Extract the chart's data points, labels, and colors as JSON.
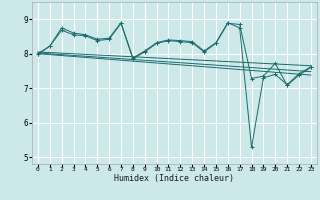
{
  "xlabel": "Humidex (Indice chaleur)",
  "bg_color": "#cce8e8",
  "grid_color": "#ffffff",
  "line_color": "#1a6b6b",
  "xlim": [
    -0.5,
    23.5
  ],
  "ylim": [
    4.8,
    9.5
  ],
  "yticks": [
    5,
    6,
    7,
    8,
    9
  ],
  "xticks": [
    0,
    1,
    2,
    3,
    4,
    5,
    6,
    7,
    8,
    9,
    10,
    11,
    12,
    13,
    14,
    15,
    16,
    17,
    18,
    19,
    20,
    21,
    22,
    23
  ],
  "series1_x": [
    0,
    1,
    2,
    3,
    4,
    5,
    6,
    7,
    8,
    9,
    10,
    11,
    12,
    13,
    14,
    15,
    16,
    17,
    18,
    19,
    20,
    21,
    22,
    23
  ],
  "series1_y": [
    7.98,
    8.22,
    8.68,
    8.55,
    8.52,
    8.38,
    8.42,
    8.88,
    7.85,
    8.05,
    8.3,
    8.38,
    8.35,
    8.32,
    8.05,
    8.3,
    8.88,
    8.85,
    7.28,
    7.35,
    7.72,
    7.08,
    7.38,
    7.6
  ],
  "series2_x": [
    0,
    1,
    2,
    3,
    4,
    5,
    6,
    7,
    8,
    9,
    10,
    11,
    12,
    13,
    14,
    15,
    16,
    17,
    18,
    19,
    20,
    21,
    22,
    23
  ],
  "series2_y": [
    8.0,
    8.22,
    8.75,
    8.6,
    8.55,
    8.42,
    8.45,
    8.9,
    7.88,
    8.08,
    8.32,
    8.4,
    8.38,
    8.35,
    8.08,
    8.32,
    8.9,
    8.75,
    5.28,
    7.3,
    7.4,
    7.1,
    7.42,
    7.62
  ],
  "trend1_x": [
    0,
    23
  ],
  "trend1_y": [
    8.05,
    7.65
  ],
  "trend2_x": [
    0,
    23
  ],
  "trend2_y": [
    8.02,
    7.48
  ],
  "trend3_x": [
    0,
    23
  ],
  "trend3_y": [
    8.0,
    7.38
  ]
}
